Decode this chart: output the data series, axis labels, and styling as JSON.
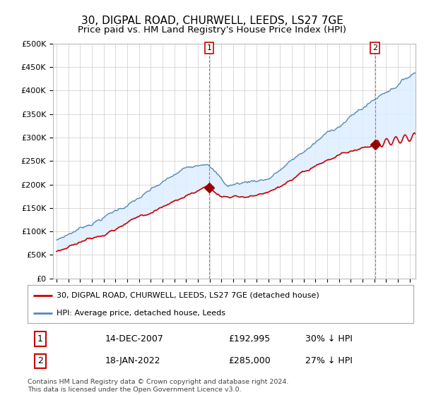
{
  "title": "30, DIGPAL ROAD, CHURWELL, LEEDS, LS27 7GE",
  "subtitle": "Price paid vs. HM Land Registry's House Price Index (HPI)",
  "ylabel_ticks": [
    "£0",
    "£50K",
    "£100K",
    "£150K",
    "£200K",
    "£250K",
    "£300K",
    "£350K",
    "£400K",
    "£450K",
    "£500K"
  ],
  "ytick_values": [
    0,
    50000,
    100000,
    150000,
    200000,
    250000,
    300000,
    350000,
    400000,
    450000,
    500000
  ],
  "xlim_start": 1994.7,
  "xlim_end": 2025.5,
  "ylim": [
    0,
    500000
  ],
  "red_line_color": "#cc0000",
  "blue_line_color": "#5588bb",
  "fill_color": "#ddeeff",
  "marker_color": "#990000",
  "purchase1_x": 2007.96,
  "purchase1_y": 192995,
  "purchase2_x": 2022.05,
  "purchase2_y": 285000,
  "legend_red": "30, DIGPAL ROAD, CHURWELL, LEEDS, LS27 7GE (detached house)",
  "legend_blue": "HPI: Average price, detached house, Leeds",
  "table_row1": [
    "1",
    "14-DEC-2007",
    "£192,995",
    "30% ↓ HPI"
  ],
  "table_row2": [
    "2",
    "18-JAN-2022",
    "£285,000",
    "27% ↓ HPI"
  ],
  "footer": "Contains HM Land Registry data © Crown copyright and database right 2024.\nThis data is licensed under the Open Government Licence v3.0.",
  "background_color": "#ffffff",
  "grid_color": "#cccccc"
}
